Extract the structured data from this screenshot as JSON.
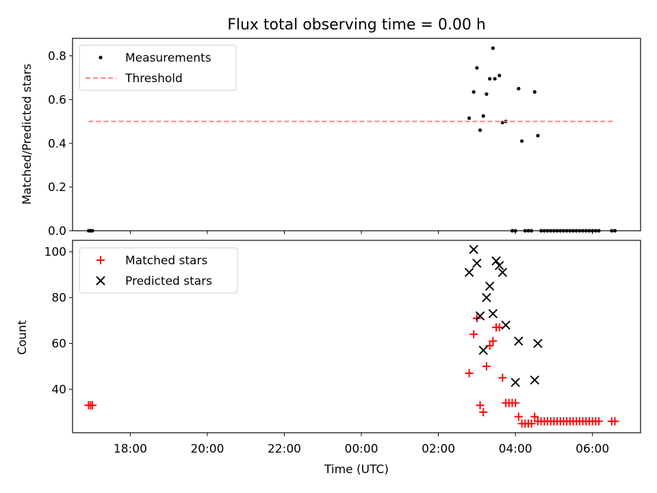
{
  "title": "Flux total observing time = 0.00 h",
  "colors": {
    "measurement": "#000000",
    "threshold": "#ff7f7f",
    "matched": "#ff0000",
    "predicted": "#000000"
  },
  "chart_data": [
    {
      "type": "scatter",
      "ylabel": "Matched/Predicted stars",
      "xlabel": "",
      "xlim": [
        "16:30",
        "07:15"
      ],
      "ylim": [
        0,
        0.88
      ],
      "yticks": [
        "0.0",
        "0.2",
        "0.4",
        "0.6",
        "0.8"
      ],
      "grid": false,
      "legend_position": "upper-left",
      "series": [
        {
          "name": "Measurements",
          "marker": "dot",
          "points": [
            [
              "16:55",
              0.0
            ],
            [
              "16:58",
              0.0
            ],
            [
              "17:01",
              0.0
            ],
            [
              "02:48",
              0.515
            ],
            [
              "02:55",
              0.635
            ],
            [
              "03:00",
              0.745
            ],
            [
              "03:05",
              0.46
            ],
            [
              "03:10",
              0.525
            ],
            [
              "03:15",
              0.625
            ],
            [
              "03:20",
              0.695
            ],
            [
              "03:28",
              0.695
            ],
            [
              "03:35",
              0.71
            ],
            [
              "03:40",
              0.495
            ],
            [
              "03:45",
              0.5
            ],
            [
              "03:25",
              0.835
            ],
            [
              "04:05",
              0.65
            ],
            [
              "04:10",
              0.41
            ],
            [
              "04:30",
              0.635
            ],
            [
              "04:35",
              0.435
            ],
            [
              "03:55",
              0.0
            ],
            [
              "04:00",
              0.0
            ],
            [
              "04:15",
              0.0
            ],
            [
              "04:20",
              0.0
            ],
            [
              "04:25",
              0.0
            ],
            [
              "04:40",
              0.0
            ],
            [
              "04:45",
              0.0
            ],
            [
              "04:50",
              0.0
            ],
            [
              "04:55",
              0.0
            ],
            [
              "05:00",
              0.0
            ],
            [
              "05:05",
              0.0
            ],
            [
              "05:10",
              0.0
            ],
            [
              "05:15",
              0.0
            ],
            [
              "05:20",
              0.0
            ],
            [
              "05:25",
              0.0
            ],
            [
              "05:30",
              0.0
            ],
            [
              "05:35",
              0.0
            ],
            [
              "05:40",
              0.0
            ],
            [
              "05:45",
              0.0
            ],
            [
              "05:50",
              0.0
            ],
            [
              "05:55",
              0.0
            ],
            [
              "06:00",
              0.0
            ],
            [
              "06:05",
              0.0
            ],
            [
              "06:10",
              0.0
            ],
            [
              "06:30",
              0.0
            ],
            [
              "06:35",
              0.0
            ]
          ]
        },
        {
          "name": "Threshold",
          "marker": "dashed-line",
          "points": [
            [
              "16:55",
              0.5
            ],
            [
              "06:35",
              0.5
            ]
          ]
        }
      ]
    },
    {
      "type": "scatter",
      "ylabel": "Count",
      "xlabel": "Time (UTC)",
      "xlim": [
        "16:30",
        "07:15"
      ],
      "ylim": [
        21,
        105
      ],
      "xticks": [
        "18:00",
        "20:00",
        "22:00",
        "00:00",
        "02:00",
        "04:00",
        "06:00"
      ],
      "yticks": [
        "40",
        "60",
        "80",
        "100"
      ],
      "grid": false,
      "legend_position": "upper-left",
      "series": [
        {
          "name": "Matched stars",
          "marker": "plus",
          "points": [
            [
              "16:55",
              33
            ],
            [
              "16:58",
              33
            ],
            [
              "17:01",
              33
            ],
            [
              "02:48",
              47
            ],
            [
              "02:55",
              64
            ],
            [
              "03:00",
              71
            ],
            [
              "03:05",
              33
            ],
            [
              "03:10",
              30
            ],
            [
              "03:15",
              50
            ],
            [
              "03:20",
              59
            ],
            [
              "03:25",
              61
            ],
            [
              "03:30",
              67
            ],
            [
              "03:35",
              67
            ],
            [
              "03:40",
              45
            ],
            [
              "03:45",
              34
            ],
            [
              "03:50",
              34
            ],
            [
              "03:55",
              34
            ],
            [
              "04:00",
              34
            ],
            [
              "04:05",
              28
            ],
            [
              "04:10",
              25
            ],
            [
              "04:15",
              25
            ],
            [
              "04:20",
              25
            ],
            [
              "04:25",
              25
            ],
            [
              "04:30",
              28
            ],
            [
              "04:35",
              26
            ],
            [
              "04:40",
              26
            ],
            [
              "04:45",
              26
            ],
            [
              "04:50",
              26
            ],
            [
              "04:55",
              26
            ],
            [
              "05:00",
              26
            ],
            [
              "05:05",
              26
            ],
            [
              "05:10",
              26
            ],
            [
              "05:15",
              26
            ],
            [
              "05:20",
              26
            ],
            [
              "05:25",
              26
            ],
            [
              "05:30",
              26
            ],
            [
              "05:35",
              26
            ],
            [
              "05:40",
              26
            ],
            [
              "05:45",
              26
            ],
            [
              "05:50",
              26
            ],
            [
              "05:55",
              26
            ],
            [
              "06:00",
              26
            ],
            [
              "06:05",
              26
            ],
            [
              "06:10",
              26
            ],
            [
              "06:30",
              26
            ],
            [
              "06:35",
              26
            ]
          ]
        },
        {
          "name": "Predicted stars",
          "marker": "x",
          "points": [
            [
              "02:48",
              91
            ],
            [
              "02:55",
              101
            ],
            [
              "03:00",
              95
            ],
            [
              "03:05",
              72
            ],
            [
              "03:10",
              57
            ],
            [
              "03:15",
              80
            ],
            [
              "03:20",
              85
            ],
            [
              "03:25",
              73
            ],
            [
              "03:30",
              96
            ],
            [
              "03:35",
              94
            ],
            [
              "03:40",
              91
            ],
            [
              "03:45",
              68
            ],
            [
              "04:00",
              43
            ],
            [
              "04:05",
              61
            ],
            [
              "04:30",
              44
            ],
            [
              "04:35",
              60
            ]
          ]
        }
      ]
    }
  ]
}
